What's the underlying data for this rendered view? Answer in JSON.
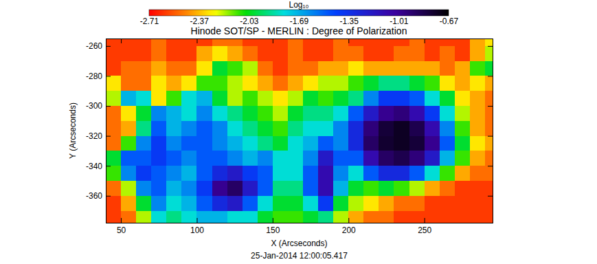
{
  "chart_data": {
    "type": "heatmap",
    "title": "Hinode SOT/SP - MERLIN : Degree of Polarization",
    "xlabel": "X (Arcseconds)",
    "ylabel": "Y (Arcseconds)",
    "annotations": [
      "25-Jan-2014 12:00:05.417"
    ],
    "xlim": [
      40,
      295
    ],
    "ylim": [
      -378,
      -255
    ],
    "xticks": [
      50,
      100,
      150,
      200,
      250
    ],
    "yticks": [
      -260,
      -280,
      -300,
      -320,
      -340,
      -360
    ],
    "x": [
      45,
      55,
      65,
      75,
      85,
      95,
      105,
      115,
      125,
      135,
      145,
      155,
      165,
      175,
      185,
      195,
      205,
      215,
      225,
      235,
      245,
      255,
      265,
      275,
      285,
      295
    ],
    "y": [
      -255,
      -265,
      -275,
      -285,
      -295,
      -305,
      -315,
      -325,
      -335,
      -345,
      -355,
      -365,
      -375
    ],
    "z": [
      [
        -2.6,
        -2.6,
        -2.6,
        -2.5,
        -2.6,
        -2.6,
        -2.6,
        -2.5,
        -2.5,
        -2.6,
        -2.6,
        -2.6,
        -2.5,
        -2.6,
        -2.6,
        -2.5,
        -2.6,
        -2.6,
        -2.6,
        -2.6,
        -2.5,
        -2.6,
        -2.6,
        -2.6,
        -2.4,
        -2.3
      ],
      [
        -2.6,
        -2.6,
        -2.6,
        -2.5,
        -2.6,
        -2.6,
        -2.4,
        -2.3,
        -2.4,
        -2.5,
        -2.6,
        -2.6,
        -2.5,
        -2.6,
        -2.6,
        -2.5,
        -2.5,
        -2.6,
        -2.6,
        -2.5,
        -2.5,
        -2.6,
        -2.5,
        -2.6,
        -2.4,
        -2.2
      ],
      [
        -2.6,
        -2.5,
        -2.5,
        -2.4,
        -2.5,
        -2.5,
        -2.3,
        -2.0,
        -2.1,
        -2.2,
        -2.5,
        -2.6,
        -2.5,
        -2.5,
        -2.4,
        -2.4,
        -2.3,
        -2.4,
        -2.4,
        -2.4,
        -2.4,
        -2.4,
        -2.5,
        -2.4,
        -2.1,
        -2.0
      ],
      [
        -2.3,
        -2.5,
        -2.5,
        -2.3,
        -2.4,
        -2.3,
        -2.1,
        -2.1,
        -2.2,
        -2.3,
        -2.4,
        -2.5,
        -2.4,
        -2.3,
        -2.2,
        -2.2,
        -2.1,
        -2.0,
        -1.9,
        -1.9,
        -2.0,
        -2.1,
        -2.3,
        -2.4,
        -2.3,
        -2.4
      ],
      [
        -2.2,
        -1.7,
        -1.8,
        -2.3,
        -2.1,
        -1.8,
        -1.7,
        -2.0,
        -2.2,
        -2.1,
        -2.2,
        -2.3,
        -2.2,
        -2.0,
        -2.1,
        -2.0,
        -1.9,
        -1.6,
        -1.4,
        -1.4,
        -1.5,
        -1.8,
        -2.0,
        -2.3,
        -2.4,
        -2.5
      ],
      [
        -2.5,
        -2.3,
        -2.0,
        -1.6,
        -1.7,
        -1.8,
        -1.6,
        -1.8,
        -1.9,
        -2.0,
        -2.1,
        -2.2,
        -2.0,
        -1.9,
        -1.9,
        -1.8,
        -1.5,
        -1.2,
        -1.0,
        -0.95,
        -1.1,
        -1.4,
        -1.8,
        -2.2,
        -2.4,
        -2.5
      ],
      [
        -2.5,
        -2.4,
        -1.9,
        -1.5,
        -1.7,
        -1.6,
        -1.5,
        -1.6,
        -1.8,
        -1.9,
        -2.0,
        -2.1,
        -1.9,
        -1.8,
        -1.8,
        -1.6,
        -1.3,
        -0.95,
        -0.8,
        -0.75,
        -0.85,
        -1.1,
        -1.6,
        -2.1,
        -2.4,
        -2.5
      ],
      [
        -2.5,
        -2.1,
        -1.6,
        -1.4,
        -1.6,
        -1.5,
        -1.5,
        -1.6,
        -1.7,
        -1.8,
        -1.9,
        -2.0,
        -1.8,
        -1.7,
        -1.5,
        -1.6,
        -1.3,
        -0.9,
        -0.78,
        -0.75,
        -0.8,
        -1.0,
        -1.5,
        -2.0,
        -2.3,
        -2.4
      ],
      [
        -2.0,
        -1.5,
        -1.5,
        -1.4,
        -1.5,
        -1.6,
        -1.5,
        -1.5,
        -1.6,
        -1.7,
        -1.6,
        -1.8,
        -1.8,
        -1.6,
        -1.2,
        -1.5,
        -1.5,
        -1.1,
        -0.9,
        -0.85,
        -0.95,
        -1.2,
        -1.7,
        -2.1,
        -2.4,
        -2.5
      ],
      [
        -2.1,
        -1.6,
        -1.4,
        -1.5,
        -1.6,
        -1.7,
        -1.5,
        -1.3,
        -1.2,
        -1.4,
        -1.5,
        -1.8,
        -1.8,
        -1.5,
        -1.1,
        -1.6,
        -1.8,
        -1.5,
        -1.3,
        -1.3,
        -1.5,
        -1.8,
        -2.1,
        -2.4,
        -2.5,
        -2.5
      ],
      [
        -2.5,
        -2.2,
        -1.6,
        -1.5,
        -1.7,
        -1.6,
        -1.4,
        -1.0,
        -0.9,
        -1.2,
        -1.5,
        -1.9,
        -1.9,
        -1.5,
        -1.1,
        -1.7,
        -2.0,
        -2.1,
        -2.0,
        -2.1,
        -2.2,
        -2.4,
        -2.5,
        -2.6,
        -2.6,
        -2.6
      ],
      [
        -2.6,
        -2.4,
        -2.0,
        -1.6,
        -1.8,
        -1.7,
        -1.5,
        -1.3,
        -1.2,
        -1.5,
        -1.8,
        -2.0,
        -2.0,
        -1.8,
        -1.4,
        -2.0,
        -2.2,
        -2.3,
        -2.4,
        -2.5,
        -2.5,
        -2.6,
        -2.6,
        -2.6,
        -2.6,
        -2.6
      ],
      [
        -2.6,
        -2.5,
        -2.2,
        -1.8,
        -1.9,
        -1.8,
        -1.7,
        -1.7,
        -1.8,
        -1.8,
        -2.0,
        -2.1,
        -2.1,
        -2.0,
        -1.9,
        -2.2,
        -2.4,
        -2.5,
        -2.5,
        -2.6,
        -2.6,
        -2.6,
        -2.6,
        -2.6,
        -2.6,
        -2.6
      ]
    ],
    "colorbar": {
      "label": "Log₁₀",
      "range": [
        -2.71,
        -0.67
      ],
      "ticks": [
        -2.71,
        -2.37,
        -2.03,
        -1.69,
        -1.35,
        -1.01,
        -0.67
      ]
    }
  }
}
